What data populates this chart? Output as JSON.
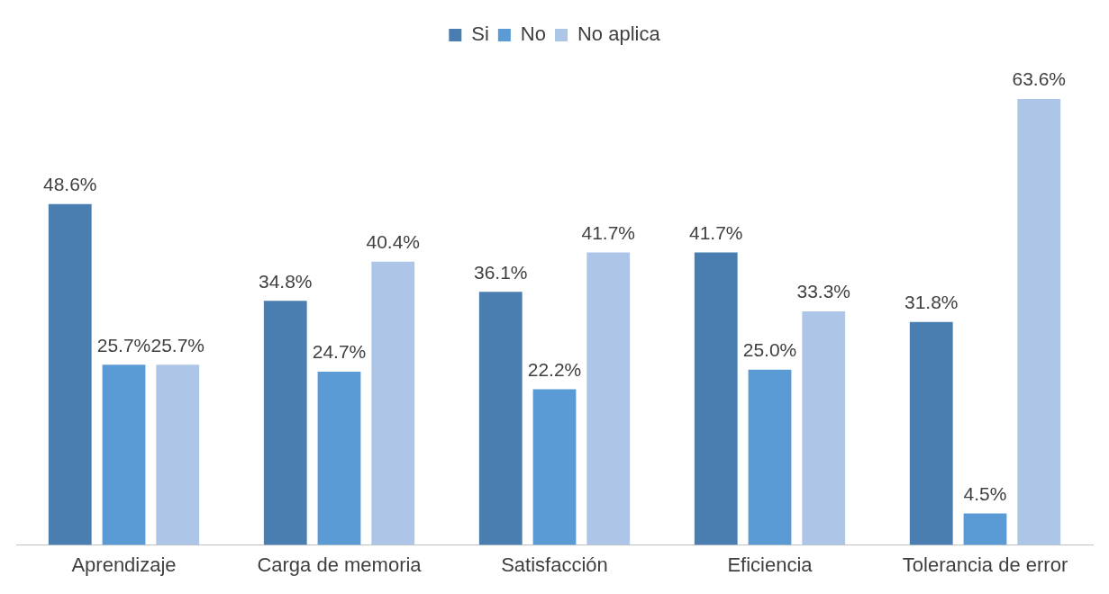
{
  "chart_data": {
    "type": "bar",
    "categories": [
      "Aprendizaje",
      "Carga de memoria",
      "Satisfacción",
      "Eficiencia",
      "Tolerancia de error"
    ],
    "series": [
      {
        "name": "Si",
        "color": "#4a7eb0",
        "values": [
          48.6,
          34.8,
          36.1,
          41.7,
          31.8
        ],
        "value_labels": [
          "48.6%",
          "34.8%",
          "36.1%",
          "41.7%",
          "31.8%"
        ]
      },
      {
        "name": "No",
        "color": "#5b9bd5",
        "values": [
          25.7,
          24.7,
          22.2,
          25.0,
          4.5
        ],
        "value_labels": [
          "25.7%",
          "24.7%",
          "22.2%",
          "25.0%",
          "4.5%"
        ]
      },
      {
        "name": "No aplica",
        "color": "#adc5e6",
        "values": [
          25.7,
          40.4,
          41.7,
          33.3,
          63.6
        ],
        "value_labels": [
          "25.7%",
          "40.4%",
          "41.7%",
          "33.3%",
          "63.6%"
        ]
      }
    ],
    "legend": "top",
    "grid": false
  }
}
